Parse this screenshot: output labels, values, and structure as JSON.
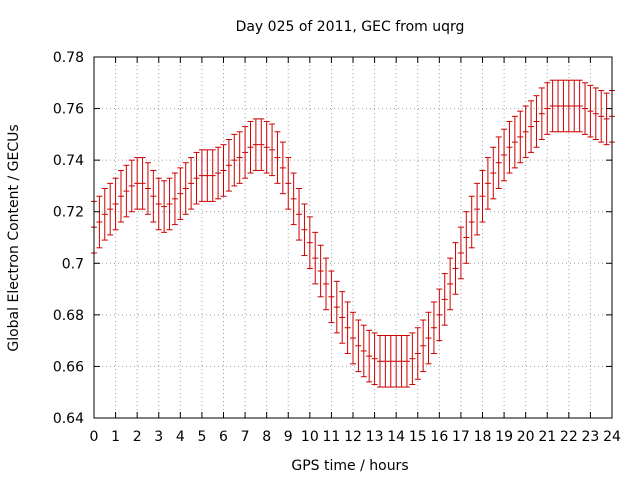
{
  "chart_data": {
    "type": "line",
    "title": "Day 025 of 2011, GEC from uqrg",
    "xlabel": "GPS time / hours",
    "ylabel": "Global Electron Content / GECUs",
    "xlim": [
      0,
      24
    ],
    "ylim": [
      0.64,
      0.78
    ],
    "xticks": [
      "0",
      "1",
      "2",
      "3",
      "4",
      "5",
      "6",
      "7",
      "8",
      "9",
      "10",
      "11",
      "12",
      "13",
      "14",
      "15",
      "16",
      "17",
      "18",
      "19",
      "20",
      "21",
      "22",
      "23",
      "24"
    ],
    "yticks": [
      "0.64",
      "0.66",
      "0.68",
      "0.7",
      "0.72",
      "0.74",
      "0.76",
      "0.78"
    ],
    "grid": true,
    "series_color": "#cc0000",
    "error": 0.01,
    "series": [
      {
        "x": [
          0,
          0.25,
          0.5,
          0.75,
          1,
          1.25,
          1.5,
          1.75,
          2,
          2.25,
          2.5,
          2.75,
          3,
          3.25,
          3.5,
          3.75,
          4,
          4.25,
          4.5,
          4.75,
          5,
          5.25,
          5.5,
          5.75,
          6,
          6.25,
          6.5,
          6.75,
          7,
          7.25,
          7.5,
          7.75,
          8,
          8.25,
          8.5,
          8.75,
          9,
          9.25,
          9.5,
          9.75,
          10,
          10.25,
          10.5,
          10.75,
          11,
          11.25,
          11.5,
          11.75,
          12,
          12.25,
          12.5,
          12.75,
          13,
          13.25,
          13.5,
          13.75,
          14,
          14.25,
          14.5,
          14.75,
          15,
          15.25,
          15.5,
          15.75,
          16,
          16.25,
          16.5,
          16.75,
          17,
          17.25,
          17.5,
          17.75,
          18,
          18.25,
          18.5,
          18.75,
          19,
          19.25,
          19.5,
          19.75,
          20,
          20.25,
          20.5,
          20.75,
          21,
          21.25,
          21.5,
          21.75,
          22,
          22.25,
          22.5,
          22.75,
          23,
          23.25,
          23.5,
          23.75,
          24
        ],
        "y": [
          0.714,
          0.716,
          0.719,
          0.721,
          0.723,
          0.726,
          0.728,
          0.73,
          0.731,
          0.731,
          0.729,
          0.726,
          0.723,
          0.722,
          0.723,
          0.725,
          0.727,
          0.729,
          0.731,
          0.733,
          0.734,
          0.734,
          0.734,
          0.735,
          0.736,
          0.738,
          0.74,
          0.741,
          0.743,
          0.745,
          0.746,
          0.746,
          0.745,
          0.744,
          0.741,
          0.737,
          0.731,
          0.725,
          0.719,
          0.713,
          0.708,
          0.702,
          0.697,
          0.692,
          0.687,
          0.683,
          0.679,
          0.675,
          0.671,
          0.668,
          0.666,
          0.664,
          0.663,
          0.662,
          0.662,
          0.662,
          0.662,
          0.662,
          0.662,
          0.663,
          0.665,
          0.668,
          0.671,
          0.675,
          0.68,
          0.686,
          0.692,
          0.698,
          0.704,
          0.71,
          0.716,
          0.721,
          0.726,
          0.731,
          0.735,
          0.739,
          0.742,
          0.745,
          0.747,
          0.749,
          0.751,
          0.753,
          0.755,
          0.758,
          0.76,
          0.761,
          0.761,
          0.761,
          0.761,
          0.761,
          0.761,
          0.76,
          0.759,
          0.758,
          0.757,
          0.756,
          0.757
        ]
      }
    ]
  }
}
